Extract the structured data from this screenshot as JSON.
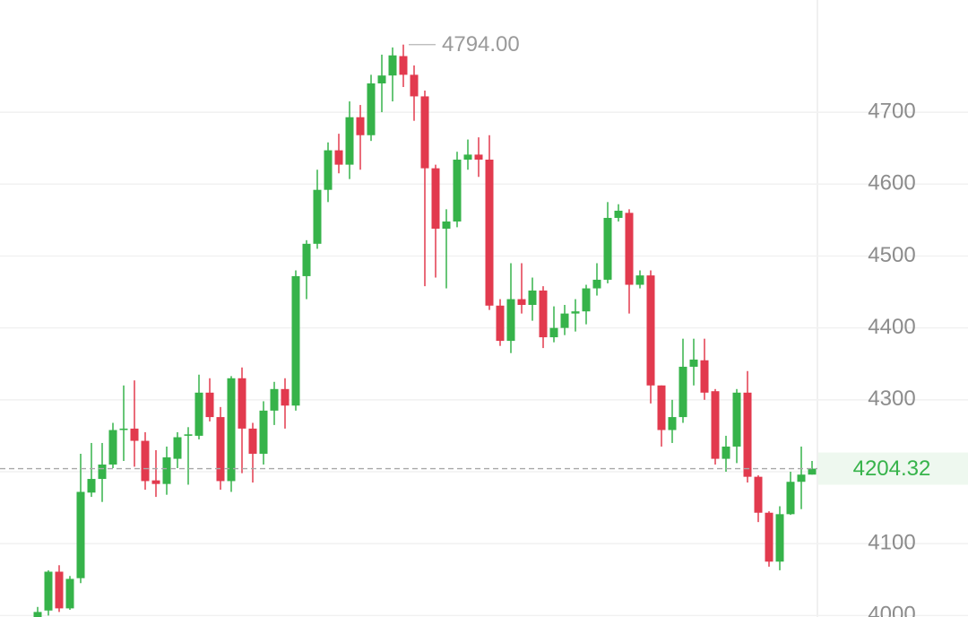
{
  "chart_data": {
    "type": "candlestick",
    "up_color": "#36b34a",
    "down_color": "#e23a4e",
    "ylim": [
      3998,
      4856
    ],
    "yticks": [
      4000,
      4100,
      4200,
      4300,
      4400,
      4500,
      4600,
      4700
    ],
    "grid": true,
    "open": [
      3995,
      4007,
      4061,
      4010,
      4052,
      4171,
      4190,
      4210,
      4258,
      4260,
      4243,
      4188,
      4183,
      4218,
      4250,
      4250,
      4310,
      4276,
      4187,
      4330,
      4260,
      4225,
      4285,
      4315,
      4292,
      4472,
      4517,
      4592,
      4647,
      4627,
      4693,
      4668,
      4740,
      4751,
      4778,
      4752,
      4722,
      4622,
      4538,
      4548,
      4634,
      4641,
      4634,
      4431,
      4382,
      4440,
      4432,
      4452,
      4387,
      4400,
      4420,
      4423,
      4455,
      4467,
      4553,
      4560,
      4460,
      4473,
      4320,
      4258,
      4276,
      4346,
      4355,
      4312,
      4218,
      4235,
      4310,
      4193,
      4143,
      4075,
      4141,
      4186,
      4196
    ],
    "high": [
      4012,
      4063,
      4070,
      4055,
      4225,
      4240,
      4240,
      4268,
      4320,
      4327,
      4255,
      4230,
      4235,
      4255,
      4262,
      4335,
      4330,
      4290,
      4333,
      4345,
      4268,
      4298,
      4325,
      4330,
      4480,
      4522,
      4620,
      4658,
      4670,
      4715,
      4710,
      4752,
      4780,
      4790,
      4794,
      4765,
      4730,
      4627,
      4565,
      4645,
      4662,
      4665,
      4668,
      4440,
      4490,
      4490,
      4470,
      4458,
      4430,
      4432,
      4440,
      4460,
      4490,
      4575,
      4572,
      4565,
      4480,
      4480,
      4320,
      4300,
      4385,
      4385,
      4385,
      4315,
      4250,
      4315,
      4340,
      4195,
      4145,
      4152,
      4200,
      4235,
      4215
    ],
    "low": [
      3990,
      4000,
      4005,
      4008,
      4045,
      4165,
      4158,
      4205,
      4215,
      4207,
      4175,
      4165,
      4168,
      4205,
      4182,
      4245,
      4270,
      4175,
      4172,
      4198,
      4185,
      4210,
      4265,
      4260,
      4285,
      4440,
      4510,
      4575,
      4615,
      4607,
      4620,
      4660,
      4700,
      4715,
      4735,
      4688,
      4458,
      4470,
      4455,
      4540,
      4620,
      4610,
      4425,
      4375,
      4365,
      4420,
      4410,
      4372,
      4380,
      4390,
      4395,
      4405,
      4445,
      4462,
      4548,
      4420,
      4455,
      4295,
      4235,
      4240,
      4268,
      4320,
      4300,
      4210,
      4200,
      4212,
      4185,
      4130,
      4068,
      4063,
      4140,
      4148,
      4196
    ],
    "close": [
      4005,
      4061,
      4010,
      4051,
      4172,
      4190,
      4210,
      4258,
      4260,
      4243,
      4187,
      4183,
      4220,
      4248,
      4252,
      4310,
      4276,
      4187,
      4330,
      4260,
      4225,
      4285,
      4315,
      4292,
      4472,
      4517,
      4592,
      4647,
      4627,
      4693,
      4668,
      4740,
      4751,
      4779,
      4752,
      4722,
      4622,
      4538,
      4548,
      4634,
      4641,
      4634,
      4431,
      4382,
      4440,
      4432,
      4452,
      4387,
      4400,
      4420,
      4423,
      4455,
      4467,
      4553,
      4563,
      4460,
      4473,
      4320,
      4258,
      4276,
      4346,
      4356,
      4310,
      4218,
      4235,
      4310,
      4193,
      4143,
      4075,
      4141,
      4186,
      4196,
      4204.32
    ],
    "high_marker": {
      "value": 4794,
      "label": "4794.00"
    },
    "last_price": 4204.32
  }
}
